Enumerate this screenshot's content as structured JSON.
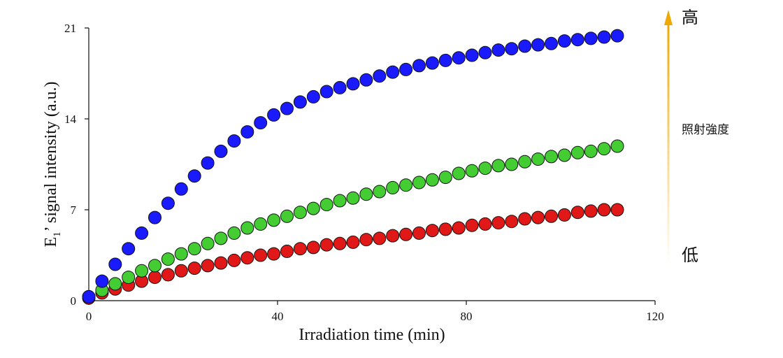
{
  "chart_data": {
    "type": "scatter",
    "xlabel": "Irradiation time (min)",
    "ylabel_main": "E",
    "ylabel_sub": "1",
    "ylabel_rest": "’ signal intensity (a.u.)",
    "xlim": [
      0,
      120
    ],
    "ylim": [
      0,
      21
    ],
    "xticks": [
      0,
      40,
      80,
      120
    ],
    "xtick_labels": [
      "0",
      "40",
      "80",
      "120"
    ],
    "yticks": [
      0,
      7,
      14,
      21
    ],
    "ytick_labels": [
      "0",
      "7",
      "14",
      "21"
    ],
    "grid": false,
    "series": [
      {
        "name": "blue",
        "color": "#1a1aff",
        "x": [
          0,
          2.8,
          5.6,
          8.4,
          11.2,
          14,
          16.8,
          19.6,
          22.4,
          25.2,
          28,
          30.8,
          33.6,
          36.4,
          39.2,
          42,
          44.8,
          47.6,
          50.4,
          53.2,
          56,
          58.8,
          61.6,
          64.4,
          67.2,
          70,
          72.8,
          75.6,
          78.4,
          81.2,
          84,
          86.8,
          89.6,
          92.4,
          95.2,
          98,
          100.8,
          103.6,
          106.4,
          109.2,
          112
        ],
        "y": [
          0.3,
          1.5,
          2.8,
          4.0,
          5.2,
          6.4,
          7.5,
          8.6,
          9.6,
          10.6,
          11.5,
          12.3,
          13.0,
          13.7,
          14.3,
          14.8,
          15.3,
          15.7,
          16.1,
          16.4,
          16.7,
          17.0,
          17.3,
          17.6,
          17.8,
          18.1,
          18.3,
          18.5,
          18.7,
          18.9,
          19.1,
          19.3,
          19.4,
          19.6,
          19.7,
          19.8,
          20.0,
          20.1,
          20.2,
          20.3,
          20.4
        ]
      },
      {
        "name": "green",
        "color": "#44cc33",
        "x": [
          0,
          2.8,
          5.6,
          8.4,
          11.2,
          14,
          16.8,
          19.6,
          22.4,
          25.2,
          28,
          30.8,
          33.6,
          36.4,
          39.2,
          42,
          44.8,
          47.6,
          50.4,
          53.2,
          56,
          58.8,
          61.6,
          64.4,
          67.2,
          70,
          72.8,
          75.6,
          78.4,
          81.2,
          84,
          86.8,
          89.6,
          92.4,
          95.2,
          98,
          100.8,
          103.6,
          106.4,
          109.2,
          112
        ],
        "y": [
          0.3,
          0.8,
          1.3,
          1.8,
          2.3,
          2.7,
          3.2,
          3.6,
          4.0,
          4.4,
          4.8,
          5.2,
          5.6,
          5.9,
          6.2,
          6.5,
          6.8,
          7.1,
          7.4,
          7.7,
          7.9,
          8.2,
          8.4,
          8.7,
          8.9,
          9.1,
          9.3,
          9.5,
          9.8,
          10.0,
          10.2,
          10.4,
          10.5,
          10.7,
          10.9,
          11.1,
          11.2,
          11.4,
          11.5,
          11.7,
          11.9
        ]
      },
      {
        "name": "red",
        "color": "#e01818",
        "x": [
          0,
          2.8,
          5.6,
          8.4,
          11.2,
          14,
          16.8,
          19.6,
          22.4,
          25.2,
          28,
          30.8,
          33.6,
          36.4,
          39.2,
          42,
          44.8,
          47.6,
          50.4,
          53.2,
          56,
          58.8,
          61.6,
          64.4,
          67.2,
          70,
          72.8,
          75.6,
          78.4,
          81.2,
          84,
          86.8,
          89.6,
          92.4,
          95.2,
          98,
          100.8,
          103.6,
          106.4,
          109.2,
          112
        ],
        "y": [
          0.2,
          0.6,
          0.9,
          1.2,
          1.5,
          1.8,
          2.0,
          2.3,
          2.5,
          2.7,
          2.9,
          3.1,
          3.3,
          3.5,
          3.6,
          3.8,
          4.0,
          4.1,
          4.3,
          4.4,
          4.5,
          4.7,
          4.8,
          5.0,
          5.1,
          5.2,
          5.4,
          5.5,
          5.6,
          5.8,
          5.9,
          6.0,
          6.1,
          6.3,
          6.4,
          6.5,
          6.6,
          6.8,
          6.9,
          7.0,
          7.0
        ]
      }
    ],
    "side_legend": {
      "top_label": "高",
      "bottom_label": "低",
      "middle_label": "照射強度",
      "top_color": "#e01818",
      "bottom_color": "#1a5fd6",
      "arrow_color": "#f0a800"
    }
  }
}
